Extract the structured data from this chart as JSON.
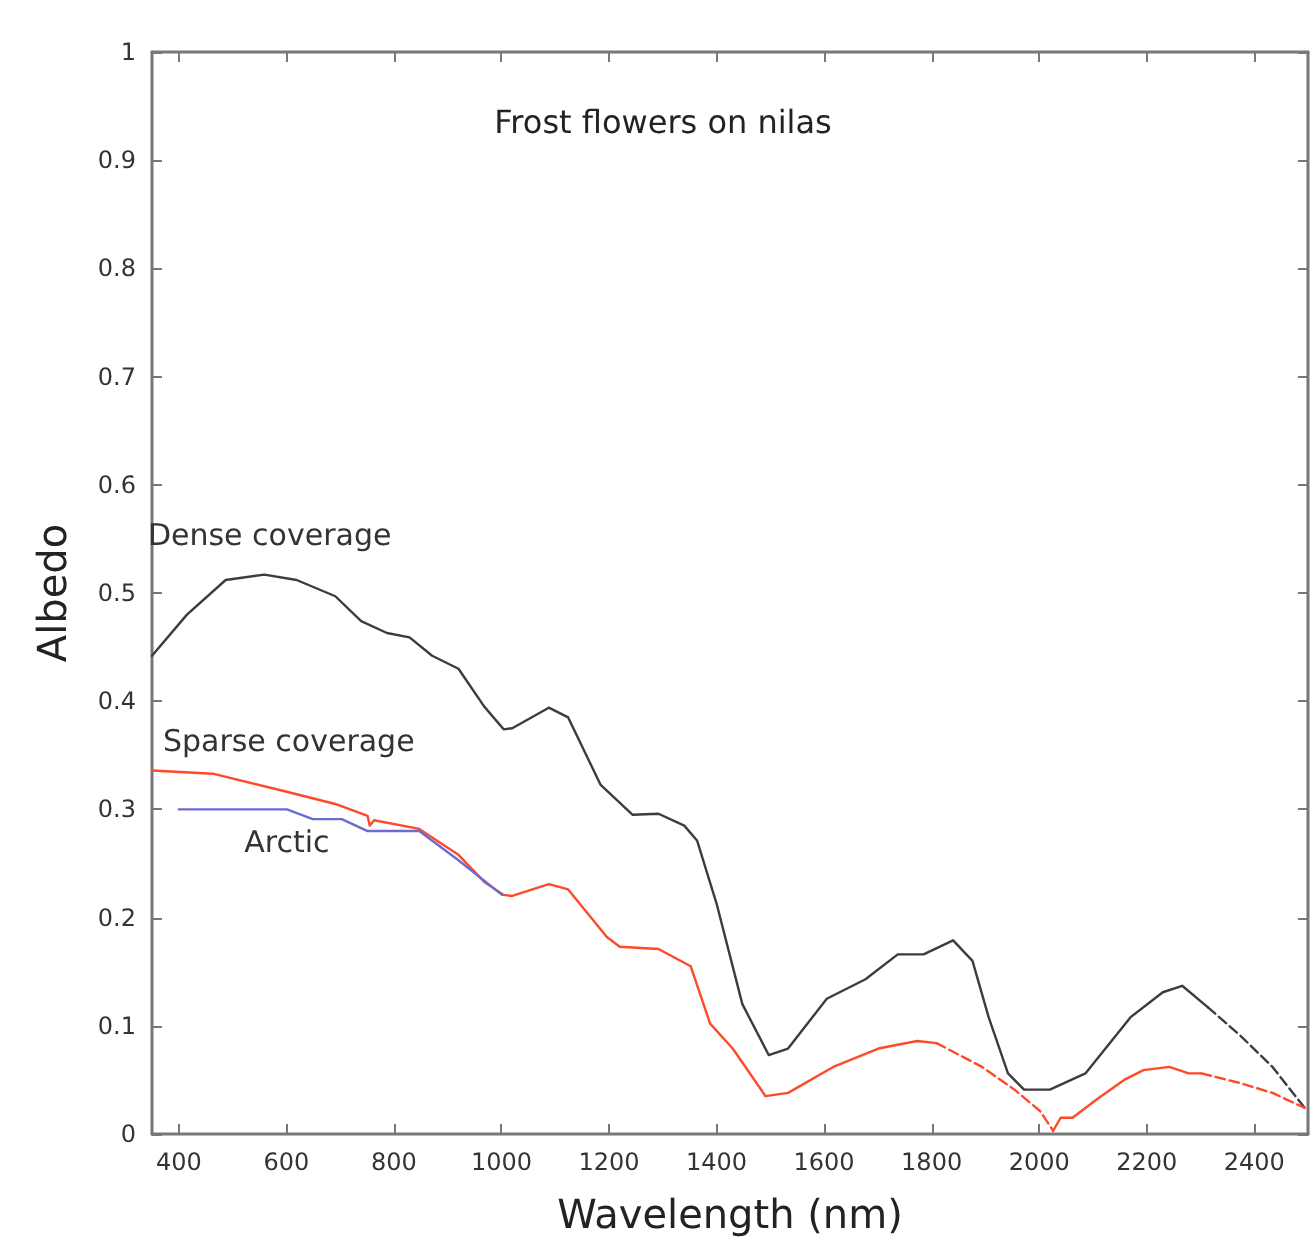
{
  "chart_data": {
    "type": "line",
    "title": "Frost flowers on nilas",
    "xlabel": "Wavelength (nm)",
    "ylabel": "Albedo",
    "xlim": [
      350,
      2500
    ],
    "xticks": [
      400,
      600,
      800,
      1000,
      1200,
      1400,
      1600,
      1800,
      2000,
      2200,
      2400
    ],
    "ylim": [
      0,
      1
    ],
    "yticks": [
      0,
      0.1,
      0.2,
      0.3,
      0.4,
      0.5,
      0.6,
      0.7,
      0.8,
      0.9,
      1
    ],
    "grid": false,
    "legend": false,
    "marker": "none",
    "series": [
      {
        "name": "Dense coverage",
        "color": "#3c3c3c",
        "line_style": "solid",
        "x": [
          350,
          415,
          487,
          559,
          619,
          691,
          739,
          787,
          829,
          871,
          920,
          968,
          1004,
          1020,
          1088,
          1124,
          1184,
          1244,
          1292,
          1340,
          1364,
          1400,
          1448,
          1497,
          1533,
          1605,
          1677,
          1737,
          1785,
          1840,
          1876,
          1906,
          1942,
          1972,
          2020,
          2086,
          2170,
          2230,
          2266,
          2314
        ],
        "values": [
          0.442,
          0.48,
          0.512,
          0.517,
          0.512,
          0.497,
          0.474,
          0.463,
          0.459,
          0.442,
          0.43,
          0.395,
          0.374,
          0.375,
          0.394,
          0.385,
          0.323,
          0.295,
          0.296,
          0.285,
          0.271,
          0.213,
          0.12,
          0.073,
          0.079,
          0.125,
          0.143,
          0.166,
          0.166,
          0.179,
          0.16,
          0.108,
          0.056,
          0.041,
          0.041,
          0.056,
          0.108,
          0.131,
          0.137,
          0.117
        ]
      },
      {
        "color": "#3c3c3c",
        "line_style": "dashed",
        "x": [
          2314,
          2374,
          2434,
          2494
        ],
        "values": [
          0.117,
          0.091,
          0.062,
          0.024
        ]
      },
      {
        "name": "Sparse coverage",
        "color": "#ff4a2a",
        "line_style": "solid",
        "x": [
          350,
          463,
          595,
          691,
          751,
          755,
          763,
          847,
          920,
          968,
          1004,
          1020,
          1088,
          1124,
          1196,
          1220,
          1292,
          1352,
          1388,
          1430,
          1491,
          1533,
          1617,
          1701,
          1773,
          1809
        ],
        "values": [
          0.336,
          0.333,
          0.317,
          0.305,
          0.294,
          0.285,
          0.29,
          0.282,
          0.258,
          0.233,
          0.221,
          0.22,
          0.231,
          0.226,
          0.182,
          0.173,
          0.171,
          0.155,
          0.102,
          0.079,
          0.035,
          0.038,
          0.062,
          0.079,
          0.086,
          0.084
        ]
      },
      {
        "color": "#ff4a2a",
        "line_style": "dashed",
        "x": [
          1809,
          1894,
          1954,
          2002,
          2026
        ],
        "values": [
          0.084,
          0.062,
          0.041,
          0.021,
          0.003
        ]
      },
      {
        "color": "#ff4a2a",
        "line_style": "solid",
        "x": [
          2026,
          2040,
          2062,
          2110,
          2158,
          2194,
          2242,
          2278,
          2302
        ],
        "values": [
          0.003,
          0.015,
          0.015,
          0.033,
          0.05,
          0.059,
          0.062,
          0.056,
          0.056
        ]
      },
      {
        "color": "#ff4a2a",
        "line_style": "dashed",
        "x": [
          2302,
          2374,
          2434,
          2494
        ],
        "values": [
          0.056,
          0.047,
          0.038,
          0.024
        ]
      },
      {
        "name": "Arctic",
        "color": "#6b6bd0",
        "line_style": "solid",
        "x": [
          400,
          601,
          649,
          703,
          751,
          847,
          920,
          1001
        ],
        "values": [
          0.3,
          0.3,
          0.291,
          0.291,
          0.28,
          0.28,
          0.253,
          0.221
        ]
      }
    ]
  }
}
